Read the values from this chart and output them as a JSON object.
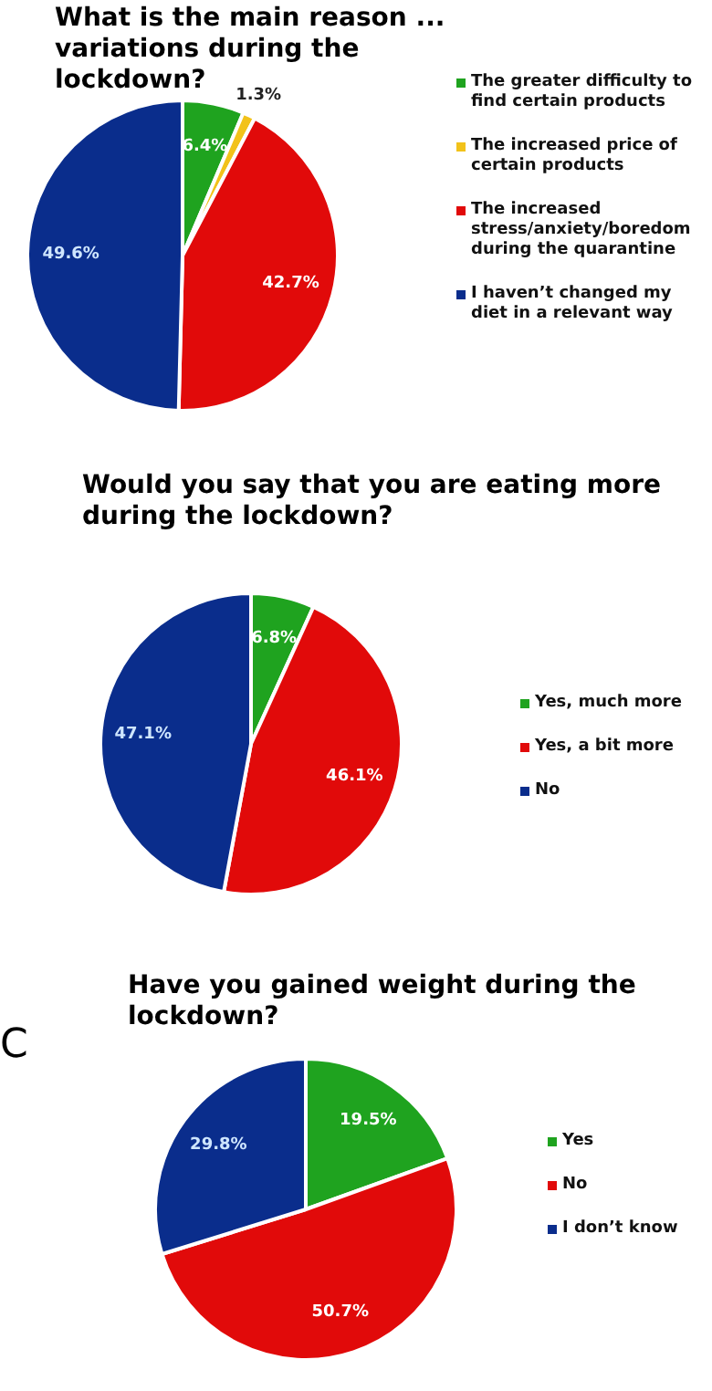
{
  "chart_data": [
    {
      "type": "pie",
      "title": "What is the main reason ... variations during the lockdown?",
      "categories": [
        "The greater difficulty to find certain products",
        "The increased price of certain products",
        "The increased stress/anxiety/boredom during the quarantine",
        "I haven’t changed my diet in a relevant way"
      ],
      "values": [
        6.4,
        1.3,
        42.7,
        49.6
      ],
      "colors": [
        "#1fa31f",
        "#f2c21a",
        "#e10a0a",
        "#0a2d8c"
      ],
      "value_labels": [
        "6.4%",
        "1.3%",
        "42.7%",
        "49.6%"
      ],
      "legend": "right"
    },
    {
      "type": "pie",
      "title": "Would you say that you are eating more during the lockdown?",
      "categories": [
        "Yes, much more",
        "Yes, a bit more",
        "No"
      ],
      "values": [
        6.8,
        46.1,
        47.1
      ],
      "colors": [
        "#1fa31f",
        "#e10a0a",
        "#0a2d8c"
      ],
      "value_labels": [
        "6.8%",
        "46.1%",
        "47.1%"
      ],
      "legend": "right"
    },
    {
      "type": "pie",
      "title": "Have you gained weight during the lockdown?",
      "categories": [
        "Yes",
        "No",
        "I don’t know"
      ],
      "values": [
        19.5,
        50.7,
        29.8
      ],
      "colors": [
        "#1fa31f",
        "#e10a0a",
        "#0a2d8c"
      ],
      "value_labels": [
        "19.5%",
        "50.7%",
        "29.8%"
      ],
      "legend": "right",
      "annotations": [
        "C"
      ]
    }
  ]
}
